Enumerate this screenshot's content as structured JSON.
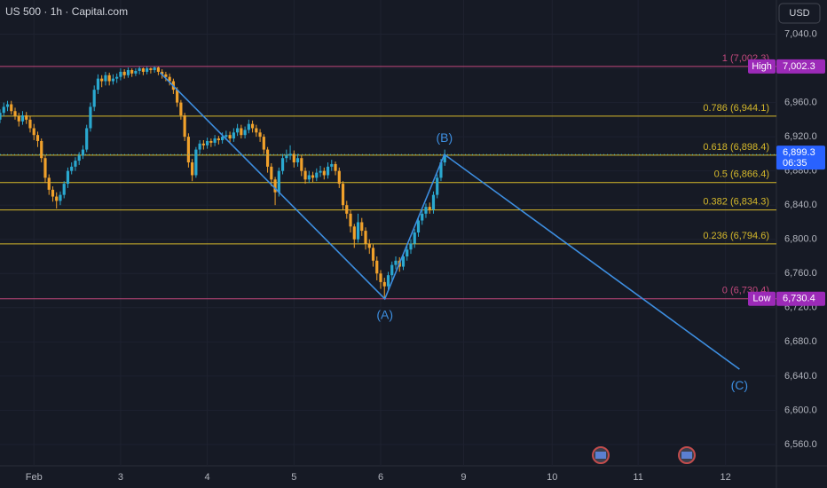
{
  "header": {
    "symbol": "US 500 · 1h · Capital.com",
    "currency": "USD"
  },
  "chart_data": {
    "type": "candlestick",
    "up_color": "#2aa8cf",
    "down_color": "#f0a12b",
    "x": [
      0,
      1,
      2,
      3,
      4,
      5,
      6,
      7,
      8,
      9,
      10,
      11,
      12,
      13,
      14,
      15,
      16,
      17,
      18,
      19,
      20,
      21,
      22,
      23,
      24,
      25,
      26,
      27,
      28,
      29,
      30,
      31,
      32,
      33,
      34,
      35,
      36,
      37,
      38,
      39,
      40,
      41,
      42,
      43,
      44,
      45,
      46,
      47,
      48,
      49,
      50,
      51,
      52,
      53,
      54,
      55,
      56,
      57,
      58,
      59,
      60,
      61,
      62,
      63,
      64,
      65,
      66,
      67,
      68,
      69,
      70,
      71,
      72,
      73,
      74,
      75,
      76,
      77,
      78,
      79,
      80,
      81,
      82,
      83,
      84,
      85,
      86,
      87,
      88,
      89,
      90,
      91,
      92,
      93,
      94,
      95,
      96,
      97,
      98,
      99,
      100,
      101,
      102,
      103,
      104,
      105,
      106,
      107,
      108,
      109,
      110,
      111,
      112,
      113,
      114,
      115,
      116,
      117,
      118
    ],
    "candles": [
      [
        6940,
        6952,
        6936,
        6948
      ],
      [
        6948,
        6960,
        6944,
        6955
      ],
      [
        6955,
        6962,
        6950,
        6958
      ],
      [
        6958,
        6962,
        6946,
        6950
      ],
      [
        6950,
        6954,
        6940,
        6944
      ],
      [
        6944,
        6948,
        6932,
        6938
      ],
      [
        6938,
        6950,
        6934,
        6945
      ],
      [
        6945,
        6949,
        6935,
        6940
      ],
      [
        6940,
        6944,
        6925,
        6930
      ],
      [
        6930,
        6935,
        6916,
        6922
      ],
      [
        6922,
        6926,
        6908,
        6915
      ],
      [
        6915,
        6918,
        6890,
        6895
      ],
      [
        6895,
        6898,
        6866,
        6872
      ],
      [
        6872,
        6876,
        6852,
        6858
      ],
      [
        6858,
        6862,
        6844,
        6850
      ],
      [
        6850,
        6855,
        6836,
        6845
      ],
      [
        6845,
        6856,
        6840,
        6852
      ],
      [
        6852,
        6868,
        6848,
        6865
      ],
      [
        6865,
        6884,
        6860,
        6880
      ],
      [
        6880,
        6890,
        6876,
        6885
      ],
      [
        6885,
        6896,
        6880,
        6892
      ],
      [
        6892,
        6902,
        6887,
        6898
      ],
      [
        6898,
        6910,
        6894,
        6905
      ],
      [
        6905,
        6934,
        6902,
        6930
      ],
      [
        6930,
        6960,
        6926,
        6955
      ],
      [
        6955,
        6980,
        6950,
        6975
      ],
      [
        6975,
        6993,
        6970,
        6988
      ],
      [
        6988,
        6992,
        6978,
        6985
      ],
      [
        6985,
        6996,
        6980,
        6992
      ],
      [
        6992,
        6995,
        6980,
        6985
      ],
      [
        6985,
        6993,
        6981,
        6988
      ],
      [
        6988,
        6994,
        6983,
        6990
      ],
      [
        6990,
        7000,
        6986,
        6996
      ],
      [
        6996,
        6999,
        6988,
        6992
      ],
      [
        6992,
        7001,
        6989,
        6998
      ],
      [
        6998,
        7000,
        6990,
        6994
      ],
      [
        6994,
        7000,
        6991,
        6997
      ],
      [
        6997,
        7002,
        6993,
        7000
      ],
      [
        7000,
        7001,
        6992,
        6996
      ],
      [
        6996,
        7002,
        6993,
        7000
      ],
      [
        7000,
        7001,
        6994,
        6998
      ],
      [
        6998,
        7002.3,
        6995,
        7001
      ],
      [
        7001,
        7002,
        6992,
        6996
      ],
      [
        6996,
        6999,
        6988,
        6993
      ],
      [
        6993,
        6996,
        6985,
        6990
      ],
      [
        6990,
        6994,
        6980,
        6985
      ],
      [
        6985,
        6988,
        6970,
        6975
      ],
      [
        6975,
        6978,
        6955,
        6960
      ],
      [
        6960,
        6963,
        6940,
        6945
      ],
      [
        6945,
        6948,
        6915,
        6920
      ],
      [
        6920,
        6924,
        6884,
        6890
      ],
      [
        6890,
        6894,
        6868,
        6875
      ],
      [
        6875,
        6908,
        6872,
        6905
      ],
      [
        6905,
        6916,
        6900,
        6912
      ],
      [
        6912,
        6916,
        6905,
        6910
      ],
      [
        6910,
        6919,
        6906,
        6915
      ],
      [
        6915,
        6918,
        6908,
        6913
      ],
      [
        6913,
        6922,
        6909,
        6918
      ],
      [
        6918,
        6921,
        6911,
        6916
      ],
      [
        6916,
        6925,
        6912,
        6920
      ],
      [
        6920,
        6927,
        6916,
        6922
      ],
      [
        6922,
        6926,
        6913,
        6918
      ],
      [
        6918,
        6930,
        6914,
        6925
      ],
      [
        6925,
        6935,
        6921,
        6930
      ],
      [
        6930,
        6934,
        6918,
        6922
      ],
      [
        6922,
        6932,
        6918,
        6928
      ],
      [
        6928,
        6940,
        6924,
        6935
      ],
      [
        6935,
        6939,
        6925,
        6930
      ],
      [
        6930,
        6934,
        6920,
        6925
      ],
      [
        6925,
        6929,
        6914,
        6920
      ],
      [
        6920,
        6923,
        6900,
        6905
      ],
      [
        6905,
        6908,
        6878,
        6885
      ],
      [
        6885,
        6889,
        6862,
        6870
      ],
      [
        6870,
        6873,
        6840,
        6855
      ],
      [
        6855,
        6884,
        6850,
        6880
      ],
      [
        6880,
        6900,
        6876,
        6895
      ],
      [
        6895,
        6905,
        6890,
        6898
      ],
      [
        6898,
        6910,
        6893,
        6900
      ],
      [
        6900,
        6904,
        6884,
        6890
      ],
      [
        6890,
        6900,
        6885,
        6895
      ],
      [
        6895,
        6898,
        6874,
        6880
      ],
      [
        6880,
        6884,
        6865,
        6870
      ],
      [
        6870,
        6880,
        6866,
        6875
      ],
      [
        6875,
        6879,
        6867,
        6872
      ],
      [
        6872,
        6883,
        6868,
        6878
      ],
      [
        6878,
        6886,
        6873,
        6880
      ],
      [
        6880,
        6884,
        6870,
        6875
      ],
      [
        6875,
        6890,
        6871,
        6885
      ],
      [
        6885,
        6893,
        6880,
        6888
      ],
      [
        6888,
        6891,
        6875,
        6880
      ],
      [
        6880,
        6884,
        6860,
        6865
      ],
      [
        6865,
        6868,
        6834,
        6840
      ],
      [
        6840,
        6845,
        6824,
        6830
      ],
      [
        6830,
        6834,
        6808,
        6815
      ],
      [
        6815,
        6818,
        6790,
        6800
      ],
      [
        6800,
        6830,
        6796,
        6820
      ],
      [
        6820,
        6825,
        6804,
        6810
      ],
      [
        6810,
        6814,
        6788,
        6795
      ],
      [
        6795,
        6800,
        6783,
        6790
      ],
      [
        6790,
        6794,
        6768,
        6775
      ],
      [
        6775,
        6780,
        6752,
        6760
      ],
      [
        6760,
        6764,
        6742,
        6750
      ],
      [
        6750,
        6755,
        6730.4,
        6745
      ],
      [
        6745,
        6762,
        6740,
        6758
      ],
      [
        6758,
        6774,
        6752,
        6770
      ],
      [
        6770,
        6780,
        6765,
        6775
      ],
      [
        6775,
        6779,
        6762,
        6768
      ],
      [
        6768,
        6784,
        6764,
        6780
      ],
      [
        6780,
        6792,
        6775,
        6788
      ],
      [
        6788,
        6800,
        6783,
        6795
      ],
      [
        6795,
        6812,
        6790,
        6808
      ],
      [
        6808,
        6826,
        6803,
        6822
      ],
      [
        6822,
        6835,
        6817,
        6830
      ],
      [
        6830,
        6842,
        6825,
        6838
      ],
      [
        6838,
        6843,
        6830,
        6835
      ],
      [
        6835,
        6856,
        6830,
        6852
      ],
      [
        6852,
        6876,
        6848,
        6872
      ],
      [
        6872,
        6894,
        6868,
        6890
      ],
      [
        6890,
        6905,
        6886,
        6899.3
      ]
    ],
    "xlim": [
      0,
      206
    ],
    "ylim": [
      6535,
      7080
    ],
    "xticks": [
      {
        "value": 9,
        "label": "Feb"
      },
      {
        "value": 32,
        "label": "3"
      },
      {
        "value": 55,
        "label": "4"
      },
      {
        "value": 78,
        "label": "5"
      },
      {
        "value": 101,
        "label": "6"
      },
      {
        "value": 123,
        "label": "9"
      },
      {
        "value": 146.5,
        "label": "10"
      },
      {
        "value": 169.3,
        "label": "11"
      },
      {
        "value": 192.5,
        "label": "12"
      }
    ],
    "yticks": [
      {
        "value": 6560,
        "label": "6,560.0"
      },
      {
        "value": 6600,
        "label": "6,600.0"
      },
      {
        "value": 6640,
        "label": "6,640.0"
      },
      {
        "value": 6680,
        "label": "6,680.0"
      },
      {
        "value": 6720,
        "label": "6,720.0"
      },
      {
        "value": 6760,
        "label": "6,760.0"
      },
      {
        "value": 6800,
        "label": "6,800.0"
      },
      {
        "value": 6840,
        "label": "6,840.0"
      },
      {
        "value": 6880,
        "label": "6,880.0"
      },
      {
        "value": 6920,
        "label": "6,920.0"
      },
      {
        "value": 6960,
        "label": "6,960.0"
      },
      {
        "value": 7000,
        "label": "7,000.0"
      },
      {
        "value": 7040,
        "label": "7,040.0"
      }
    ],
    "fib_levels": [
      {
        "label": "1 (7,002.3)",
        "value": 7002.3,
        "color": "#c2487c"
      },
      {
        "label": "0.786 (6,944.1)",
        "value": 6944.1,
        "color": "#d6b92b"
      },
      {
        "label": "0.618 (6,898.4)",
        "value": 6898.4,
        "color": "#d6b92b"
      },
      {
        "label": "0.5 (6,866.4)",
        "value": 6866.4,
        "color": "#d6b92b"
      },
      {
        "label": "0.382 (6,834.3)",
        "value": 6834.3,
        "color": "#d6b92b"
      },
      {
        "label": "0.236 (6,794.6)",
        "value": 6794.6,
        "color": "#d6b92b"
      },
      {
        "label": "0 (6,730.4)",
        "value": 6730.4,
        "color": "#c2487c"
      }
    ],
    "high_label": {
      "tag": "High",
      "value": 7002.3,
      "label": "7,002.3"
    },
    "low_label": {
      "tag": "Low",
      "value": 6730.4,
      "label": "6,730.4"
    },
    "last_price": {
      "value": 6899.3,
      "label": "6,899.3",
      "countdown": "06:35"
    },
    "wave": {
      "color": "#3d8ee0",
      "x": [
        42.5,
        102.1,
        117.9,
        196.2
      ],
      "y": [
        6995,
        6730.4,
        6899.3,
        6648
      ],
      "labels": [
        null,
        "(A)",
        "(B)",
        "(C)"
      ]
    }
  }
}
